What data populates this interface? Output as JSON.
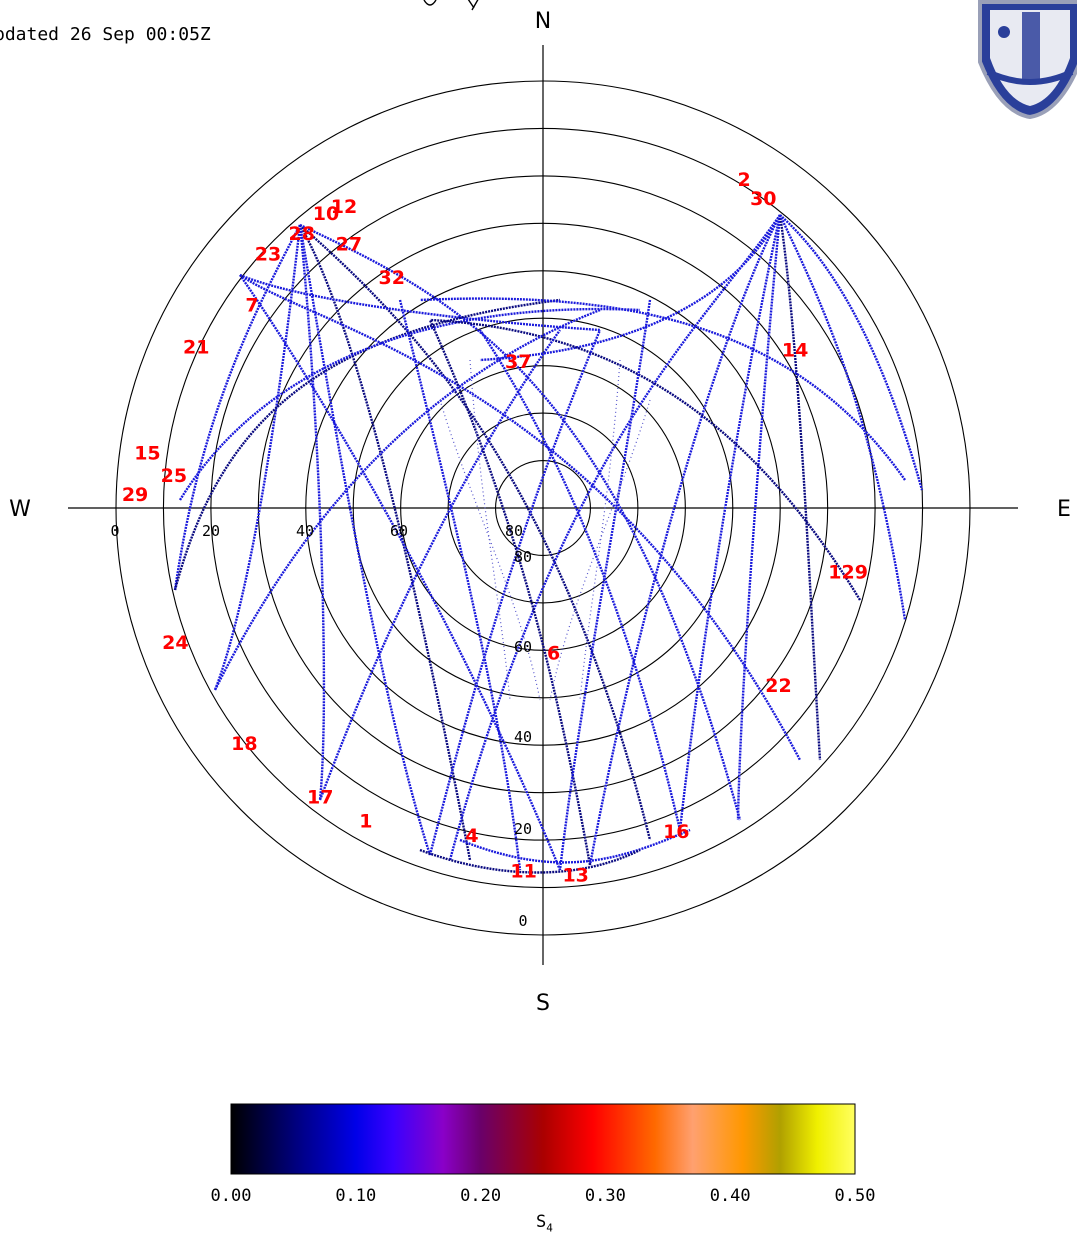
{
  "header": {
    "updated_text": "pdated 26 Sep 00:05Z"
  },
  "chart_data": {
    "type": "scatter",
    "projection": "polar-skyplot",
    "compass": {
      "north": "N",
      "south": "S",
      "east": "E",
      "west": "W"
    },
    "elevation_labels_horizontal": [
      "0",
      "20",
      "40",
      "60",
      "80"
    ],
    "elevation_labels_vertical": [
      "80",
      "60",
      "40",
      "20",
      "0"
    ],
    "elevation_rings": [
      0,
      10,
      20,
      30,
      40,
      50,
      60,
      70,
      80
    ],
    "satellite_labels": [
      {
        "text": "12",
        "az": 326,
        "el": 15
      },
      {
        "text": "10",
        "az": 323,
        "el": 14
      },
      {
        "text": "28",
        "az": 318,
        "el": 14
      },
      {
        "text": "23",
        "az": 312,
        "el": 12
      },
      {
        "text": "27",
        "az": 323,
        "el": 22
      },
      {
        "text": "32",
        "az": 326,
        "el": 33
      },
      {
        "text": "21",
        "az": 294,
        "el": 10
      },
      {
        "text": "7",
        "az": 304,
        "el": 16
      },
      {
        "text": "15",
        "az": 277,
        "el": 6
      },
      {
        "text": "29",
        "az": 271,
        "el": 4
      },
      {
        "text": "25",
        "az": 274,
        "el": 12
      },
      {
        "text": "24",
        "az": 249,
        "el": 7
      },
      {
        "text": "18",
        "az": 231,
        "el": 9
      },
      {
        "text": "17",
        "az": 217,
        "el": 12
      },
      {
        "text": "1",
        "az": 209,
        "el": 13
      },
      {
        "text": "4",
        "az": 192,
        "el": 18
      },
      {
        "text": "11",
        "az": 183,
        "el": 12
      },
      {
        "text": "13",
        "az": 175,
        "el": 11
      },
      {
        "text": "16",
        "az": 158,
        "el": 15
      },
      {
        "text": "6",
        "az": 176,
        "el": 58
      },
      {
        "text": "37",
        "az": 350,
        "el": 60
      },
      {
        "text": "14",
        "az": 59,
        "el": 28
      },
      {
        "text": "30",
        "az": 36,
        "el": 11
      },
      {
        "text": "2",
        "az": 32,
        "el": 10
      },
      {
        "text": "129",
        "az": 103,
        "el": 24
      },
      {
        "text": "22",
        "az": 128,
        "el": 27
      }
    ],
    "colorbar": {
      "min": 0.0,
      "max": 0.5,
      "tick_labels": [
        "0.00",
        "0.10",
        "0.20",
        "0.30",
        "0.40",
        "0.50"
      ],
      "title": "S",
      "title_subscript": "4",
      "stops": [
        {
          "v": 0.0,
          "color": "#000000"
        },
        {
          "v": 0.05,
          "color": "#00007a"
        },
        {
          "v": 0.1,
          "color": "#0000e8"
        },
        {
          "v": 0.13,
          "color": "#3a00ff"
        },
        {
          "v": 0.17,
          "color": "#8a00c8"
        },
        {
          "v": 0.2,
          "color": "#6a006a"
        },
        {
          "v": 0.25,
          "color": "#aa0000"
        },
        {
          "v": 0.29,
          "color": "#ff0000"
        },
        {
          "v": 0.34,
          "color": "#ff6a00"
        },
        {
          "v": 0.37,
          "color": "#ffa070"
        },
        {
          "v": 0.41,
          "color": "#ff9800"
        },
        {
          "v": 0.44,
          "color": "#b0a000"
        },
        {
          "v": 0.47,
          "color": "#f0f000"
        },
        {
          "v": 0.5,
          "color": "#ffff60"
        }
      ]
    },
    "colors": {
      "track": "#1a1adc",
      "track_dark": "#0a0a80",
      "label": "#ff0000",
      "ring": "#000000"
    }
  }
}
